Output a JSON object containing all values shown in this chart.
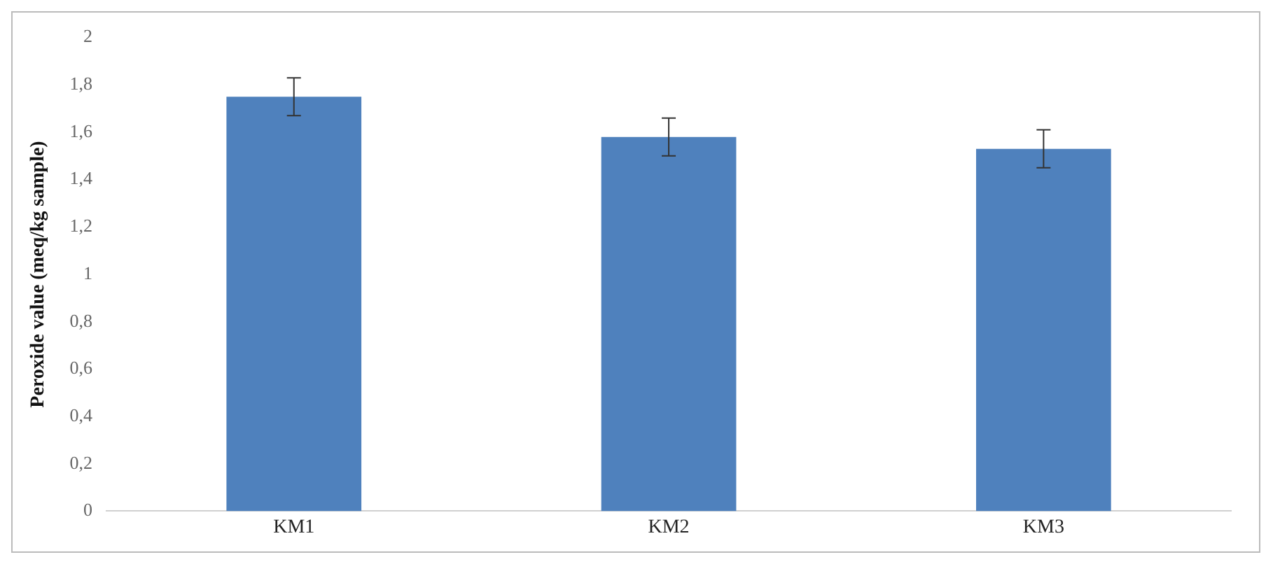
{
  "chart_data": {
    "type": "bar",
    "ylabel": "Peroxide value (meq/kg sample)",
    "categories": [
      "KM1",
      "KM2",
      "KM3"
    ],
    "series": [
      {
        "color": "#4f81bd",
        "values": [
          1.75,
          1.58,
          1.53
        ],
        "errors": [
          0.08,
          0.08,
          0.08
        ]
      }
    ],
    "ylim": [
      0,
      2
    ],
    "yticks": [
      0,
      {
        "value": 0.2,
        "label": "0,2"
      },
      {
        "value": 0.4,
        "label": "0,4"
      },
      {
        "value": 0.6,
        "label": "0,6"
      },
      {
        "value": 0.8,
        "label": "0,8"
      },
      1,
      {
        "value": 1.2,
        "label": "1,2"
      },
      {
        "value": 1.4,
        "label": "1,4"
      },
      {
        "value": 1.6,
        "label": "1,6"
      },
      {
        "value": 1.8,
        "label": "1,8"
      },
      2
    ],
    "grid": false,
    "legend": false
  }
}
